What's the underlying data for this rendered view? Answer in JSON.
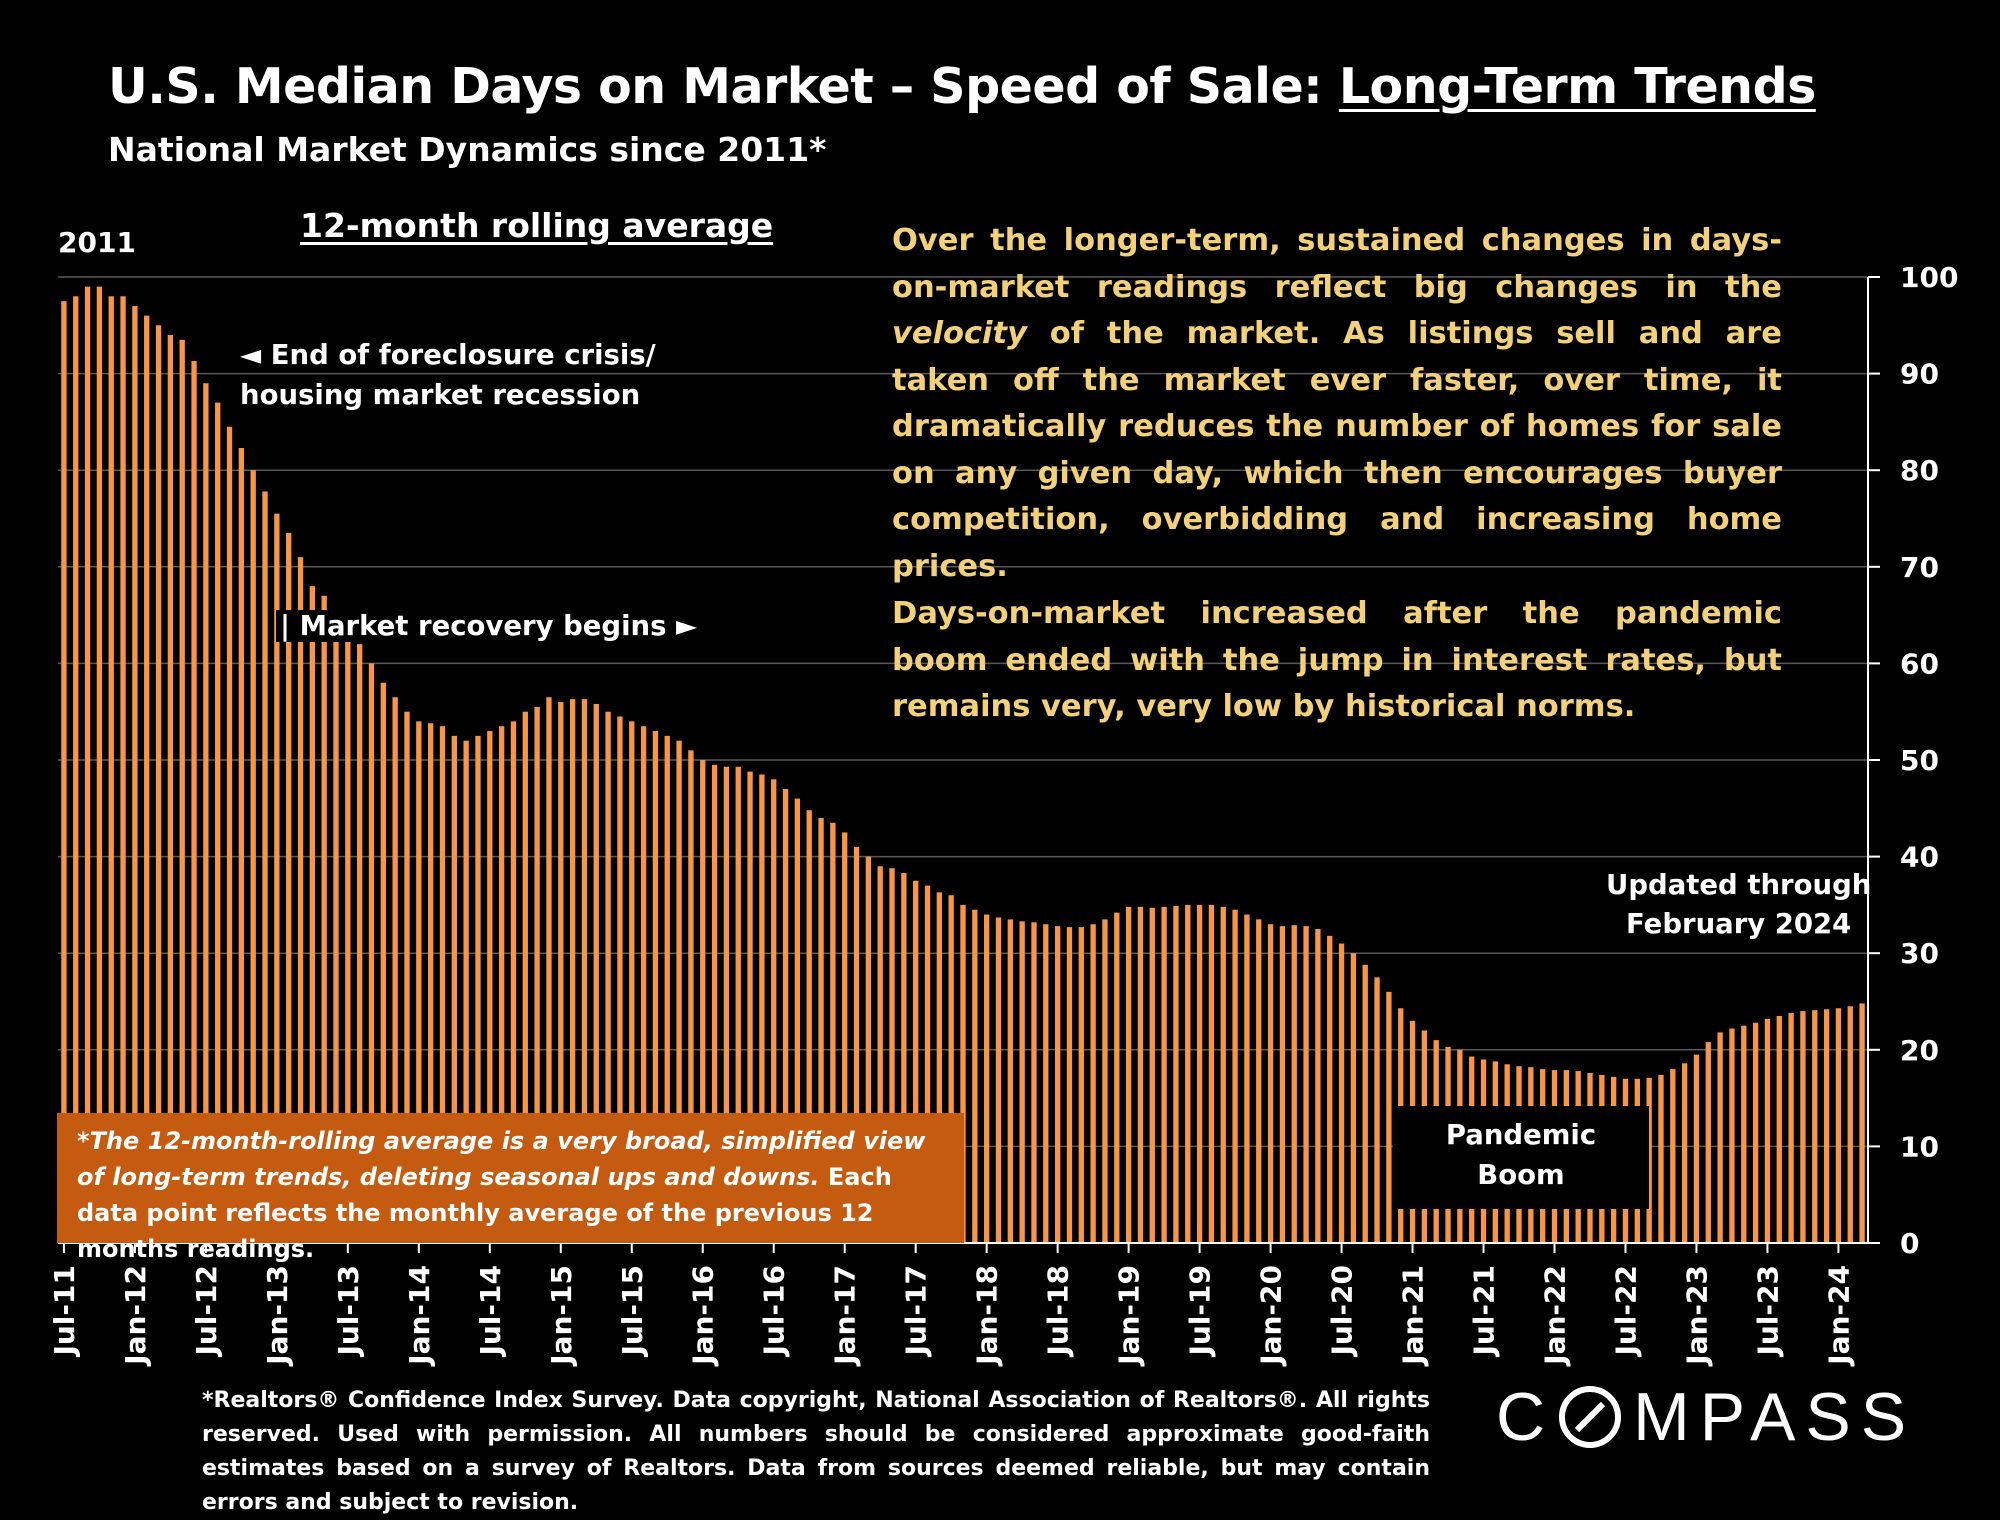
{
  "title_prefix": "U.S. Median Days on Market – Speed of Sale: ",
  "title_underlined": "Long-Term Trends",
  "subtitle": "National Market Dynamics since 2011*",
  "rolling_label": "12-month rolling average",
  "year_label": "2011",
  "annotations": {
    "foreclosure": [
      "◄ End of foreclosure crisis/",
      "housing market recession"
    ],
    "recovery": "| Market recovery begins ►",
    "updated": [
      "Updated through",
      "February 2024"
    ],
    "pandemic": [
      "Pandemic",
      "Boom"
    ]
  },
  "callout": {
    "para1_a": "Over the longer-term, sustained changes in days-on-market readings reflect big changes in the ",
    "para1_em": "velocity",
    "para1_b": " of the market. As listings sell and are taken off the market ever faster, over time, it dramatically reduces the number of homes for sale on any given day, which then encourages buyer competition, overbidding and increasing home prices.",
    "para2": "Days-on-market increased after the pandemic boom ended with the jump in interest rates, but remains very, very low by historical norms."
  },
  "note_box": {
    "italic": "*The 12-month-rolling average is a very broad, simplified view of long-term trends, deleting seasonal ups and downs.",
    "normal": " Each data point reflects the monthly average of the previous 12 months readings."
  },
  "footnote": "*Realtors® Confidence Index Survey. Data copyright, National Association of Realtors®. All rights reserved. Used with permission. All numbers should be considered approximate good-faith estimates based on a survey of Realtors. Data from sources deemed reliable, but may contain errors and subject to revision.",
  "logo_text": "COMPASS",
  "colors": {
    "bar": "#f79646",
    "callout_text": "#f3d07a",
    "note_box": "#c55a11",
    "background": "#000000",
    "grid": "#595959"
  },
  "chart_data": {
    "type": "bar",
    "series": [
      {
        "values": [
          97.5,
          98,
          99,
          99,
          98,
          98,
          97,
          96,
          95,
          94,
          93.5,
          91.3,
          89,
          87,
          84.5,
          82.3,
          80,
          77.8,
          75.5,
          73.5,
          71,
          68,
          67,
          65,
          64,
          62,
          60,
          58,
          56.5,
          55,
          54,
          53.8,
          53.5,
          52.5,
          52,
          52.5,
          53,
          53.5,
          54,
          55,
          55.5,
          56.5,
          56,
          56.3,
          56.3,
          55.8,
          55,
          54.5,
          54,
          53.5,
          53,
          52.5,
          52,
          51,
          50,
          49.5,
          49.3,
          49.3,
          48.8,
          48.5,
          48,
          47,
          46,
          44.8,
          44,
          43.5,
          42.5,
          41,
          40,
          39,
          38.8,
          38.3,
          37.5,
          37,
          36.3,
          36,
          35,
          34.5,
          34,
          33.7,
          33.5,
          33.3,
          33.2,
          33,
          32.8,
          32.7,
          32.7,
          33,
          33.5,
          34.2,
          34.8,
          34.8,
          34.7,
          34.8,
          34.9,
          35,
          35,
          35,
          34.8,
          34.5,
          34,
          33.5,
          33,
          32.8,
          32.9,
          32.8,
          32.5,
          31.8,
          31,
          30,
          28.8,
          27.5,
          26,
          24.3,
          23,
          22,
          21,
          20.3,
          20,
          19.3,
          19,
          18.8,
          18.5,
          18.3,
          18.2,
          18,
          17.9,
          17.9,
          17.8,
          17.6,
          17.4,
          17.2,
          17,
          17,
          17.1,
          17.4,
          18,
          18.6,
          19.5,
          20.8,
          21.8,
          22.2,
          22.5,
          22.8,
          23.2,
          23.5,
          23.8,
          24,
          24.1,
          24.2,
          24.3,
          24.5,
          24.8
        ]
      }
    ],
    "x_tick_labels": [
      "Jul-11",
      "Jan-12",
      "Jul-12",
      "Jan-13",
      "Jul-13",
      "Jan-14",
      "Jul-14",
      "Jan-15",
      "Jul-15",
      "Jan-16",
      "Jul-16",
      "Jan-17",
      "Jul-17",
      "Jan-18",
      "Jul-18",
      "Jan-19",
      "Jul-19",
      "Jan-20",
      "Jul-20",
      "Jan-21",
      "Jul-21",
      "Jan-22",
      "Jul-22",
      "Jan-23",
      "Jul-23",
      "Jan-24"
    ],
    "y_ticks": [
      0,
      10,
      20,
      30,
      40,
      50,
      60,
      70,
      80,
      90,
      100
    ],
    "ylim": [
      0,
      100
    ],
    "y_axis_side": "right",
    "grid": true
  }
}
